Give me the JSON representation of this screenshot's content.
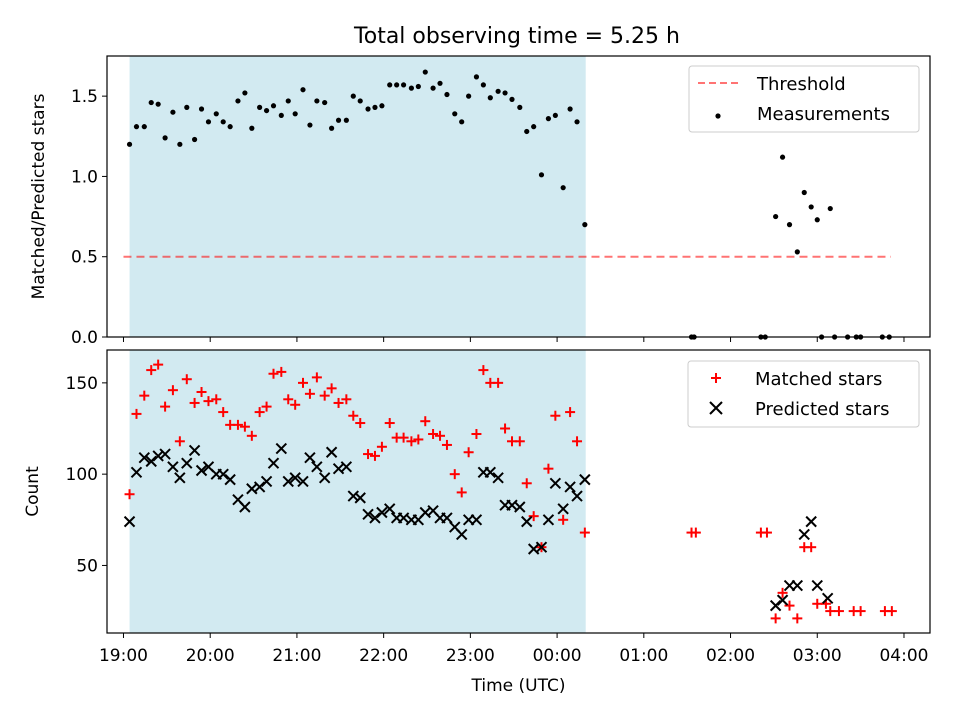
{
  "figure_title": "Total observing time = 5.25 h",
  "xlabel": "Time (UTC)",
  "x_ticks": [
    "19:00",
    "20:00",
    "21:00",
    "22:00",
    "23:00",
    "00:00",
    "01:00",
    "02:00",
    "03:00",
    "04:00"
  ],
  "colors": {
    "shade": "#add8e6",
    "threshold": "#ff0000",
    "measurements": "#000000",
    "matched": "#ff0000",
    "predicted": "#000000"
  },
  "chart_data": [
    {
      "type": "scatter",
      "ylabel": "Matched/Predicted stars",
      "xlim_hours": [
        18.81,
        28.3
      ],
      "ylim": [
        0,
        1.75
      ],
      "yticks": [
        "0.0",
        "0.5",
        "1.0",
        "1.5"
      ],
      "shaded_span_hours": [
        19.07,
        24.33
      ],
      "threshold": {
        "name": "Threshold",
        "value": 0.5,
        "x_hours": [
          19.0,
          27.85
        ]
      },
      "legend": {
        "position": "upper right",
        "entries": [
          "Threshold",
          "Measurements"
        ]
      },
      "series": [
        {
          "name": "Measurements",
          "marker": "dot",
          "points": [
            [
              19.07,
              1.2
            ],
            [
              19.15,
              1.31
            ],
            [
              19.24,
              1.31
            ],
            [
              19.32,
              1.46
            ],
            [
              19.4,
              1.45
            ],
            [
              19.48,
              1.24
            ],
            [
              19.57,
              1.4
            ],
            [
              19.65,
              1.2
            ],
            [
              19.73,
              1.43
            ],
            [
              19.82,
              1.23
            ],
            [
              19.9,
              1.42
            ],
            [
              19.98,
              1.34
            ],
            [
              20.07,
              1.39
            ],
            [
              20.15,
              1.34
            ],
            [
              20.23,
              1.31
            ],
            [
              20.32,
              1.47
            ],
            [
              20.4,
              1.52
            ],
            [
              20.48,
              1.3
            ],
            [
              20.57,
              1.43
            ],
            [
              20.65,
              1.41
            ],
            [
              20.73,
              1.44
            ],
            [
              20.82,
              1.38
            ],
            [
              20.9,
              1.47
            ],
            [
              20.98,
              1.39
            ],
            [
              21.07,
              1.54
            ],
            [
              21.15,
              1.32
            ],
            [
              21.23,
              1.47
            ],
            [
              21.32,
              1.46
            ],
            [
              21.4,
              1.3
            ],
            [
              21.48,
              1.35
            ],
            [
              21.57,
              1.35
            ],
            [
              21.65,
              1.5
            ],
            [
              21.73,
              1.47
            ],
            [
              21.82,
              1.42
            ],
            [
              21.9,
              1.43
            ],
            [
              21.98,
              1.44
            ],
            [
              22.07,
              1.57
            ],
            [
              22.15,
              1.57
            ],
            [
              22.23,
              1.57
            ],
            [
              22.32,
              1.55
            ],
            [
              22.4,
              1.56
            ],
            [
              22.48,
              1.65
            ],
            [
              22.57,
              1.55
            ],
            [
              22.65,
              1.58
            ],
            [
              22.73,
              1.51
            ],
            [
              22.82,
              1.39
            ],
            [
              22.9,
              1.34
            ],
            [
              22.98,
              1.5
            ],
            [
              23.07,
              1.62
            ],
            [
              23.15,
              1.57
            ],
            [
              23.23,
              1.49
            ],
            [
              23.32,
              1.53
            ],
            [
              23.4,
              1.52
            ],
            [
              23.48,
              1.48
            ],
            [
              23.57,
              1.43
            ],
            [
              23.65,
              1.28
            ],
            [
              23.73,
              1.31
            ],
            [
              23.82,
              1.01
            ],
            [
              23.9,
              1.36
            ],
            [
              23.98,
              1.38
            ],
            [
              24.07,
              0.93
            ],
            [
              24.15,
              1.42
            ],
            [
              24.23,
              1.34
            ],
            [
              24.32,
              0.7
            ],
            [
              25.55,
              0.0
            ],
            [
              25.58,
              0.0
            ],
            [
              26.35,
              0.0
            ],
            [
              26.4,
              0.0
            ],
            [
              26.52,
              0.75
            ],
            [
              26.6,
              1.12
            ],
            [
              26.68,
              0.7
            ],
            [
              26.77,
              0.53
            ],
            [
              26.85,
              0.9
            ],
            [
              26.93,
              0.81
            ],
            [
              27.0,
              0.73
            ],
            [
              27.15,
              0.8
            ],
            [
              27.05,
              0.0
            ],
            [
              27.2,
              0.0
            ],
            [
              27.35,
              0.0
            ],
            [
              27.45,
              0.0
            ],
            [
              27.5,
              0.0
            ],
            [
              27.75,
              0.0
            ],
            [
              27.83,
              0.0
            ]
          ]
        }
      ]
    },
    {
      "type": "scatter",
      "ylabel": "Count",
      "xlim_hours": [
        18.81,
        28.3
      ],
      "ylim": [
        13,
        168
      ],
      "yticks": [
        "50",
        "100",
        "150"
      ],
      "shaded_span_hours": [
        19.07,
        24.33
      ],
      "legend": {
        "position": "upper right",
        "entries": [
          "Matched stars",
          "Predicted stars"
        ]
      },
      "series": [
        {
          "name": "Matched stars",
          "marker": "plus",
          "points": [
            [
              19.07,
              89
            ],
            [
              19.15,
              133
            ],
            [
              19.24,
              143
            ],
            [
              19.32,
              157
            ],
            [
              19.4,
              160
            ],
            [
              19.48,
              137
            ],
            [
              19.57,
              146
            ],
            [
              19.65,
              118
            ],
            [
              19.73,
              152
            ],
            [
              19.82,
              139
            ],
            [
              19.9,
              145
            ],
            [
              19.98,
              140
            ],
            [
              20.07,
              141
            ],
            [
              20.15,
              134
            ],
            [
              20.23,
              127
            ],
            [
              20.32,
              127
            ],
            [
              20.4,
              126
            ],
            [
              20.48,
              121
            ],
            [
              20.57,
              134
            ],
            [
              20.65,
              137
            ],
            [
              20.73,
              155
            ],
            [
              20.82,
              156
            ],
            [
              20.9,
              141
            ],
            [
              20.98,
              138
            ],
            [
              21.07,
              150
            ],
            [
              21.15,
              144
            ],
            [
              21.23,
              153
            ],
            [
              21.32,
              143
            ],
            [
              21.4,
              147
            ],
            [
              21.48,
              139
            ],
            [
              21.57,
              141
            ],
            [
              21.65,
              132
            ],
            [
              21.73,
              128
            ],
            [
              21.82,
              111
            ],
            [
              21.9,
              110
            ],
            [
              21.98,
              115
            ],
            [
              22.07,
              128
            ],
            [
              22.15,
              120
            ],
            [
              22.23,
              120
            ],
            [
              22.32,
              118
            ],
            [
              22.4,
              119
            ],
            [
              22.48,
              129
            ],
            [
              22.57,
              122
            ],
            [
              22.65,
              121
            ],
            [
              22.73,
              116
            ],
            [
              22.82,
              100
            ],
            [
              22.9,
              90
            ],
            [
              22.98,
              112
            ],
            [
              23.07,
              122
            ],
            [
              23.15,
              157
            ],
            [
              23.23,
              150
            ],
            [
              23.32,
              150
            ],
            [
              23.4,
              125
            ],
            [
              23.48,
              118
            ],
            [
              23.57,
              118
            ],
            [
              23.65,
              95
            ],
            [
              23.73,
              77
            ],
            [
              23.82,
              60
            ],
            [
              23.9,
              103
            ],
            [
              23.98,
              132
            ],
            [
              24.07,
              75
            ],
            [
              24.15,
              134
            ],
            [
              24.23,
              118
            ],
            [
              24.32,
              68
            ],
            [
              25.55,
              68
            ],
            [
              25.6,
              68
            ],
            [
              26.35,
              68
            ],
            [
              26.42,
              68
            ],
            [
              26.52,
              21
            ],
            [
              26.6,
              35
            ],
            [
              26.68,
              28
            ],
            [
              26.77,
              21
            ],
            [
              26.85,
              60
            ],
            [
              26.93,
              60
            ],
            [
              27.0,
              29
            ],
            [
              27.1,
              29
            ],
            [
              27.15,
              25
            ],
            [
              27.25,
              25
            ],
            [
              27.42,
              25
            ],
            [
              27.5,
              25
            ],
            [
              27.78,
              25
            ],
            [
              27.86,
              25
            ]
          ]
        },
        {
          "name": "Predicted stars",
          "marker": "x",
          "points": [
            [
              19.07,
              74
            ],
            [
              19.15,
              101
            ],
            [
              19.24,
              109
            ],
            [
              19.32,
              107
            ],
            [
              19.4,
              110
            ],
            [
              19.48,
              111
            ],
            [
              19.57,
              104
            ],
            [
              19.65,
              98
            ],
            [
              19.73,
              106
            ],
            [
              19.82,
              113
            ],
            [
              19.9,
              102
            ],
            [
              19.98,
              104
            ],
            [
              20.07,
              100
            ],
            [
              20.15,
              100
            ],
            [
              20.23,
              97
            ],
            [
              20.32,
              86
            ],
            [
              20.4,
              82
            ],
            [
              20.48,
              92
            ],
            [
              20.57,
              93
            ],
            [
              20.65,
              96
            ],
            [
              20.73,
              106
            ],
            [
              20.82,
              114
            ],
            [
              20.9,
              96
            ],
            [
              20.98,
              98
            ],
            [
              21.07,
              96
            ],
            [
              21.15,
              109
            ],
            [
              21.23,
              104
            ],
            [
              21.32,
              98
            ],
            [
              21.4,
              112
            ],
            [
              21.48,
              103
            ],
            [
              21.57,
              104
            ],
            [
              21.65,
              88
            ],
            [
              21.73,
              87
            ],
            [
              21.82,
              78
            ],
            [
              21.9,
              76
            ],
            [
              21.98,
              79
            ],
            [
              22.07,
              81
            ],
            [
              22.15,
              76
            ],
            [
              22.23,
              76
            ],
            [
              22.32,
              75
            ],
            [
              22.4,
              75
            ],
            [
              22.48,
              79
            ],
            [
              22.57,
              80
            ],
            [
              22.65,
              76
            ],
            [
              22.73,
              76
            ],
            [
              22.82,
              71
            ],
            [
              22.9,
              67
            ],
            [
              22.98,
              75
            ],
            [
              23.07,
              75
            ],
            [
              23.15,
              101
            ],
            [
              23.23,
              101
            ],
            [
              23.32,
              98
            ],
            [
              23.4,
              83
            ],
            [
              23.48,
              83
            ],
            [
              23.57,
              82
            ],
            [
              23.65,
              74
            ],
            [
              23.73,
              59
            ],
            [
              23.82,
              60
            ],
            [
              23.9,
              75
            ],
            [
              23.98,
              95
            ],
            [
              24.07,
              81
            ],
            [
              24.15,
              93
            ],
            [
              24.23,
              88
            ],
            [
              24.32,
              97
            ],
            [
              26.52,
              28
            ],
            [
              26.6,
              31
            ],
            [
              26.68,
              39
            ],
            [
              26.77,
              39
            ],
            [
              26.85,
              67
            ],
            [
              26.93,
              74
            ],
            [
              27.0,
              39
            ],
            [
              27.12,
              32
            ]
          ]
        }
      ]
    }
  ]
}
